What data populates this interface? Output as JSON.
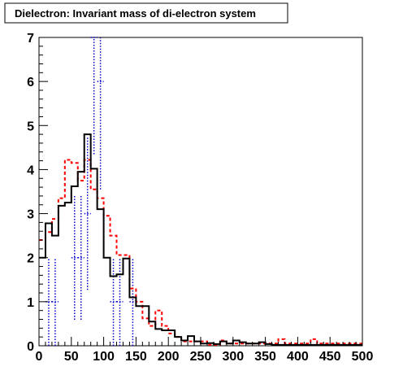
{
  "chart_data": {
    "type": "histogram",
    "title": "Dielectron: Invariant mass of di-electron system",
    "xlabel": "",
    "ylabel": "",
    "xlim": [
      0,
      500
    ],
    "ylim": [
      0,
      7
    ],
    "bin_width": 10,
    "x_ticks": [
      "0",
      "50",
      "100",
      "150",
      "200",
      "250",
      "300",
      "350",
      "400",
      "450",
      "500"
    ],
    "y_ticks": [
      "0",
      "1",
      "2",
      "3",
      "4",
      "5",
      "6",
      "7"
    ],
    "grid": false,
    "legend": "none",
    "series": [
      {
        "style": "solid-black",
        "color": "#000000",
        "values": [
          2.0,
          2.78,
          2.5,
          3.18,
          3.25,
          3.62,
          3.95,
          4.8,
          4.02,
          3.1,
          2.0,
          1.58,
          1.62,
          1.98,
          1.1,
          0.9,
          0.9,
          0.55,
          0.38,
          0.35,
          0.35,
          0.2,
          0.12,
          0.22,
          0.1,
          0.05,
          0.06,
          0.04,
          0.1,
          0.05,
          0.12,
          0.08,
          0.05,
          0.05,
          0.08,
          0.04,
          0.02,
          0.02,
          0.02,
          0.02,
          0.02,
          0.02,
          0.02,
          0.02,
          0.02,
          0.02,
          0.02,
          0.02,
          0.02,
          0.02
        ]
      },
      {
        "style": "dashed-red",
        "color": "#ff0000",
        "values": [
          2.4,
          2.58,
          2.88,
          3.35,
          4.22,
          4.15,
          3.75,
          4.22,
          3.55,
          3.35,
          2.95,
          2.5,
          2.06,
          2.06,
          1.3,
          1.0,
          0.62,
          0.45,
          0.8,
          0.45,
          0.28,
          0.2,
          0.1,
          0.1,
          0.1,
          0.1,
          0.02,
          0.02,
          0.12,
          0.05,
          0.05,
          0.05,
          0.05,
          0.05,
          0.05,
          0.05,
          0.05,
          0.15,
          0.05,
          0.05,
          0.05,
          0.05,
          0.15,
          0.05,
          0.05,
          0.05,
          0.05,
          0.05,
          0.05,
          0.05
        ]
      },
      {
        "style": "dotted-blue",
        "color": "#0000cc",
        "values": [
          0,
          1.0,
          1.0,
          0,
          0,
          2.0,
          2.0,
          3.0,
          7.0,
          6.0,
          0,
          1.0,
          1.0,
          0,
          1.0,
          0,
          0,
          0,
          0,
          0,
          0,
          0,
          0,
          0,
          0,
          0,
          0,
          0,
          0,
          0,
          0,
          0,
          0,
          0,
          0,
          0,
          0,
          0,
          0,
          0,
          0,
          0,
          0,
          0,
          0,
          0,
          0,
          0,
          0,
          0
        ],
        "errors": [
          0,
          1.0,
          1.0,
          0,
          0,
          1.41,
          1.41,
          1.73,
          2.65,
          2.45,
          0,
          1.0,
          1.0,
          0,
          1.0,
          0,
          0,
          0,
          0,
          0,
          0,
          0,
          0,
          0,
          0,
          0,
          0,
          0,
          0,
          0,
          0,
          0,
          0,
          0,
          0,
          0,
          0,
          0,
          0,
          0,
          0,
          0,
          0,
          0,
          0,
          0,
          0,
          0,
          0,
          0
        ]
      }
    ]
  }
}
